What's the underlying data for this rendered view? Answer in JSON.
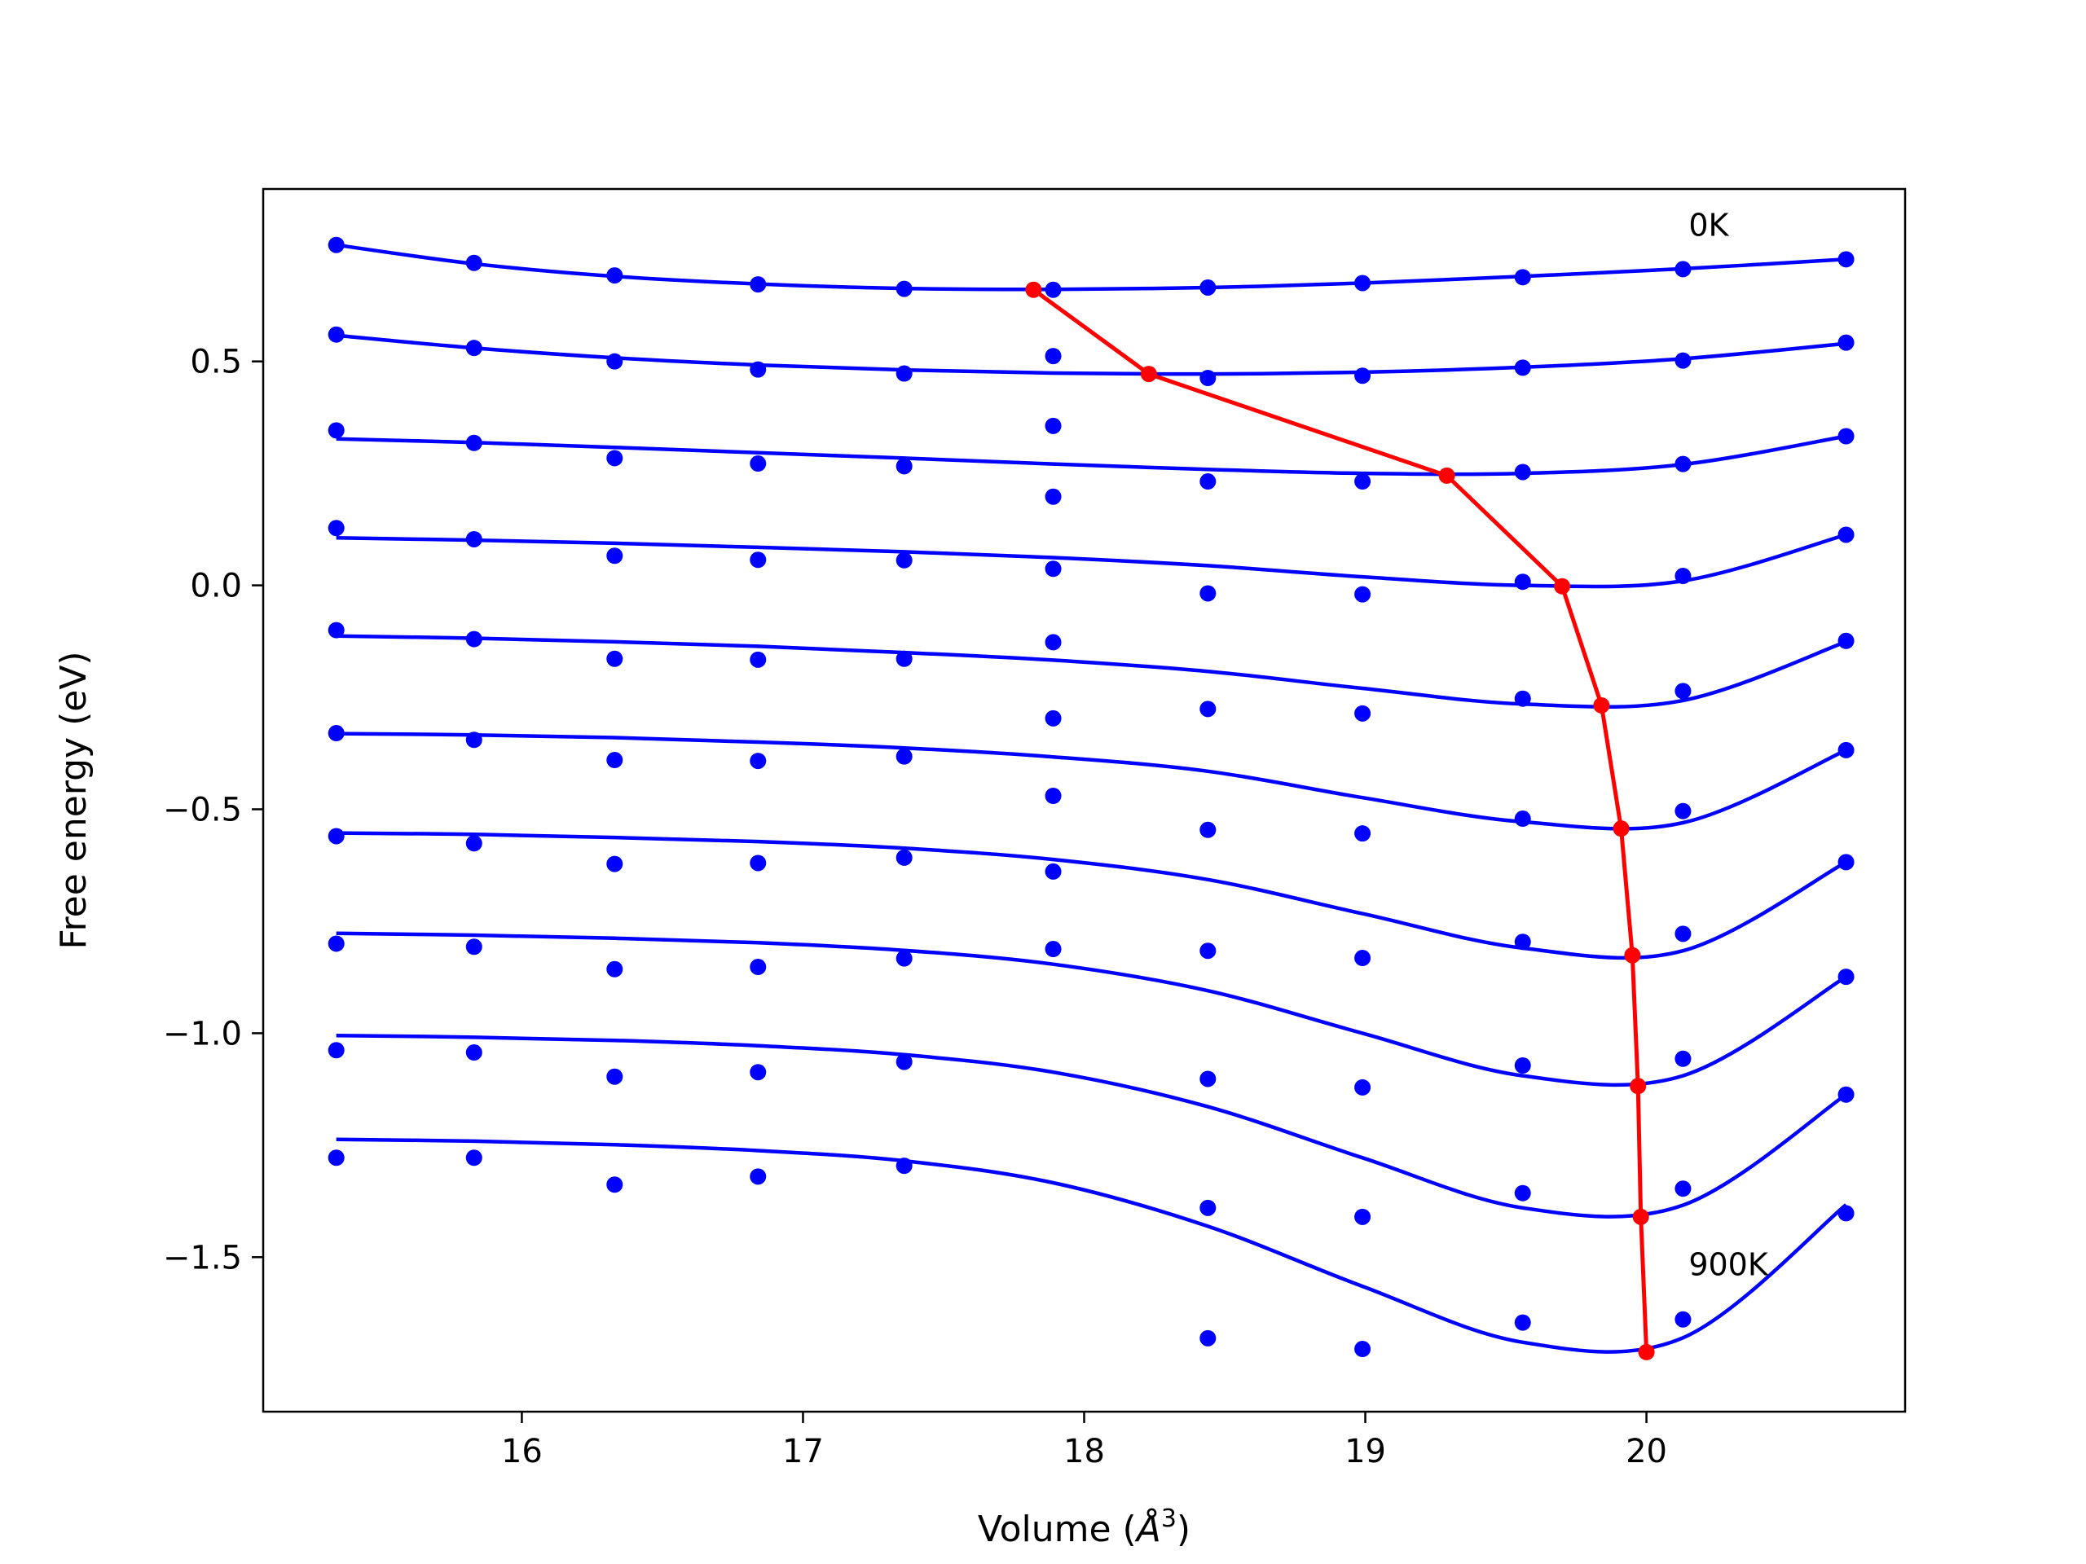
{
  "chart_data": {
    "type": "line",
    "title": "",
    "xlabel": "Volume (",
    "xlabel_unit": "Å",
    "xlabel_exp": "3",
    "xlabel_close": ")",
    "ylabel": "Free energy (eV)",
    "xlim": [
      15.08,
      20.92
    ],
    "ylim": [
      -1.845,
      0.885
    ],
    "xticks": [
      16,
      17,
      18,
      19,
      20
    ],
    "xtick_labels": [
      "16",
      "17",
      "18",
      "19",
      "20"
    ],
    "yticks": [
      -1.5,
      -1.0,
      -0.5,
      0.0,
      0.5
    ],
    "ytick_labels": [
      "−1.5",
      "−1.0",
      "−0.5",
      "0.0",
      "0.5"
    ],
    "grid": false,
    "colors": {
      "points": "#0000ff",
      "fit": "#0000ff",
      "minima": "#ff0000"
    },
    "annotations": [
      {
        "text": "0K",
        "x": 20.15,
        "y": 0.78
      },
      {
        "text": "900K",
        "x": 20.15,
        "y": -1.54
      }
    ],
    "x": [
      15.34,
      15.83,
      16.33,
      16.84,
      17.36,
      17.89,
      18.44,
      18.99,
      19.56,
      20.13,
      20.71
    ],
    "series": [
      {
        "points": [
          0.76,
          0.72,
          0.692,
          0.672,
          0.662,
          0.66,
          0.665,
          0.675,
          0.688,
          0.706,
          0.728
        ],
        "fit": [
          0.76,
          0.718,
          0.69,
          0.673,
          0.663,
          0.661,
          0.665,
          0.675,
          0.69,
          0.707,
          0.728
        ]
      },
      {
        "points": [
          0.56,
          0.53,
          0.5,
          0.482,
          0.473,
          0.512,
          0.463,
          0.468,
          0.486,
          0.502,
          0.542
        ],
        "fit": [
          0.558,
          0.53,
          0.508,
          0.492,
          0.481,
          0.474,
          0.472,
          0.476,
          0.487,
          0.506,
          0.54
        ]
      },
      {
        "points": [
          0.346,
          0.318,
          0.284,
          0.272,
          0.266,
          0.356,
          0.232,
          0.232,
          0.253,
          0.271,
          0.333
        ],
        "fit": [
          0.327,
          0.319,
          0.308,
          0.296,
          0.284,
          0.271,
          0.259,
          0.25,
          0.25,
          0.27,
          0.333
        ]
      },
      {
        "points": [
          0.128,
          0.103,
          0.066,
          0.057,
          0.056,
          0.198,
          -0.018,
          -0.02,
          0.008,
          0.021,
          0.113
        ],
        "fit": [
          0.106,
          0.101,
          0.094,
          0.085,
          0.075,
          0.062,
          0.044,
          0.019,
          0.0,
          0.01,
          0.113
        ]
      },
      {
        "points": [
          -0.1,
          -0.12,
          -0.164,
          -0.166,
          -0.164,
          0.037,
          -0.276,
          -0.286,
          -0.253,
          -0.236,
          -0.124
        ],
        "fit": [
          -0.113,
          -0.118,
          -0.126,
          -0.136,
          -0.15,
          -0.167,
          -0.192,
          -0.23,
          -0.265,
          -0.257,
          -0.126
        ]
      },
      {
        "points": [
          -0.33,
          -0.345,
          -0.39,
          -0.392,
          -0.382,
          -0.127,
          -0.546,
          -0.554,
          -0.521,
          -0.504,
          -0.368
        ],
        "fit": [
          -0.331,
          -0.334,
          -0.34,
          -0.35,
          -0.363,
          -0.383,
          -0.415,
          -0.474,
          -0.528,
          -0.53,
          -0.368
        ]
      },
      {
        "points": [
          -0.56,
          -0.576,
          -0.622,
          -0.62,
          -0.608,
          -0.297,
          -0.816,
          -0.832,
          -0.796,
          -0.778,
          -0.618
        ],
        "fit": [
          -0.553,
          -0.556,
          -0.563,
          -0.572,
          -0.587,
          -0.612,
          -0.657,
          -0.733,
          -0.81,
          -0.816,
          -0.618
        ]
      },
      {
        "points": [
          -0.8,
          -0.807,
          -0.857,
          -0.852,
          -0.833,
          -0.47,
          -1.102,
          -1.121,
          -1.072,
          -1.057,
          -0.874
        ],
        "fit": [
          -0.777,
          -0.781,
          -0.788,
          -0.798,
          -0.815,
          -0.846,
          -0.905,
          -1.0,
          -1.095,
          -1.095,
          -0.874
        ]
      },
      {
        "points": [
          -1.038,
          -1.043,
          -1.097,
          -1.087,
          -1.064,
          -0.639,
          -1.39,
          -1.41,
          -1.357,
          -1.347,
          -1.137
        ],
        "fit": [
          -1.005,
          -1.009,
          -1.016,
          -1.028,
          -1.048,
          -1.087,
          -1.164,
          -1.278,
          -1.39,
          -1.384,
          -1.137
        ]
      },
      {
        "points": [
          -1.278,
          -1.278,
          -1.338,
          -1.32,
          -1.296,
          -0.812,
          -1.681,
          -1.705,
          -1.646,
          -1.639,
          -1.402
        ],
        "fit": [
          -1.237,
          -1.241,
          -1.249,
          -1.262,
          -1.285,
          -1.334,
          -1.431,
          -1.565,
          -1.69,
          -1.68,
          -1.383
        ]
      }
    ],
    "minima_line": {
      "x": [
        17.82,
        18.23,
        19.29,
        19.7,
        19.84,
        19.91,
        19.95,
        19.97,
        19.98,
        20.0
      ],
      "y": [
        0.66,
        0.472,
        0.245,
        -0.002,
        -0.268,
        -0.543,
        -0.826,
        -1.118,
        -1.41,
        -1.712
      ]
    }
  }
}
